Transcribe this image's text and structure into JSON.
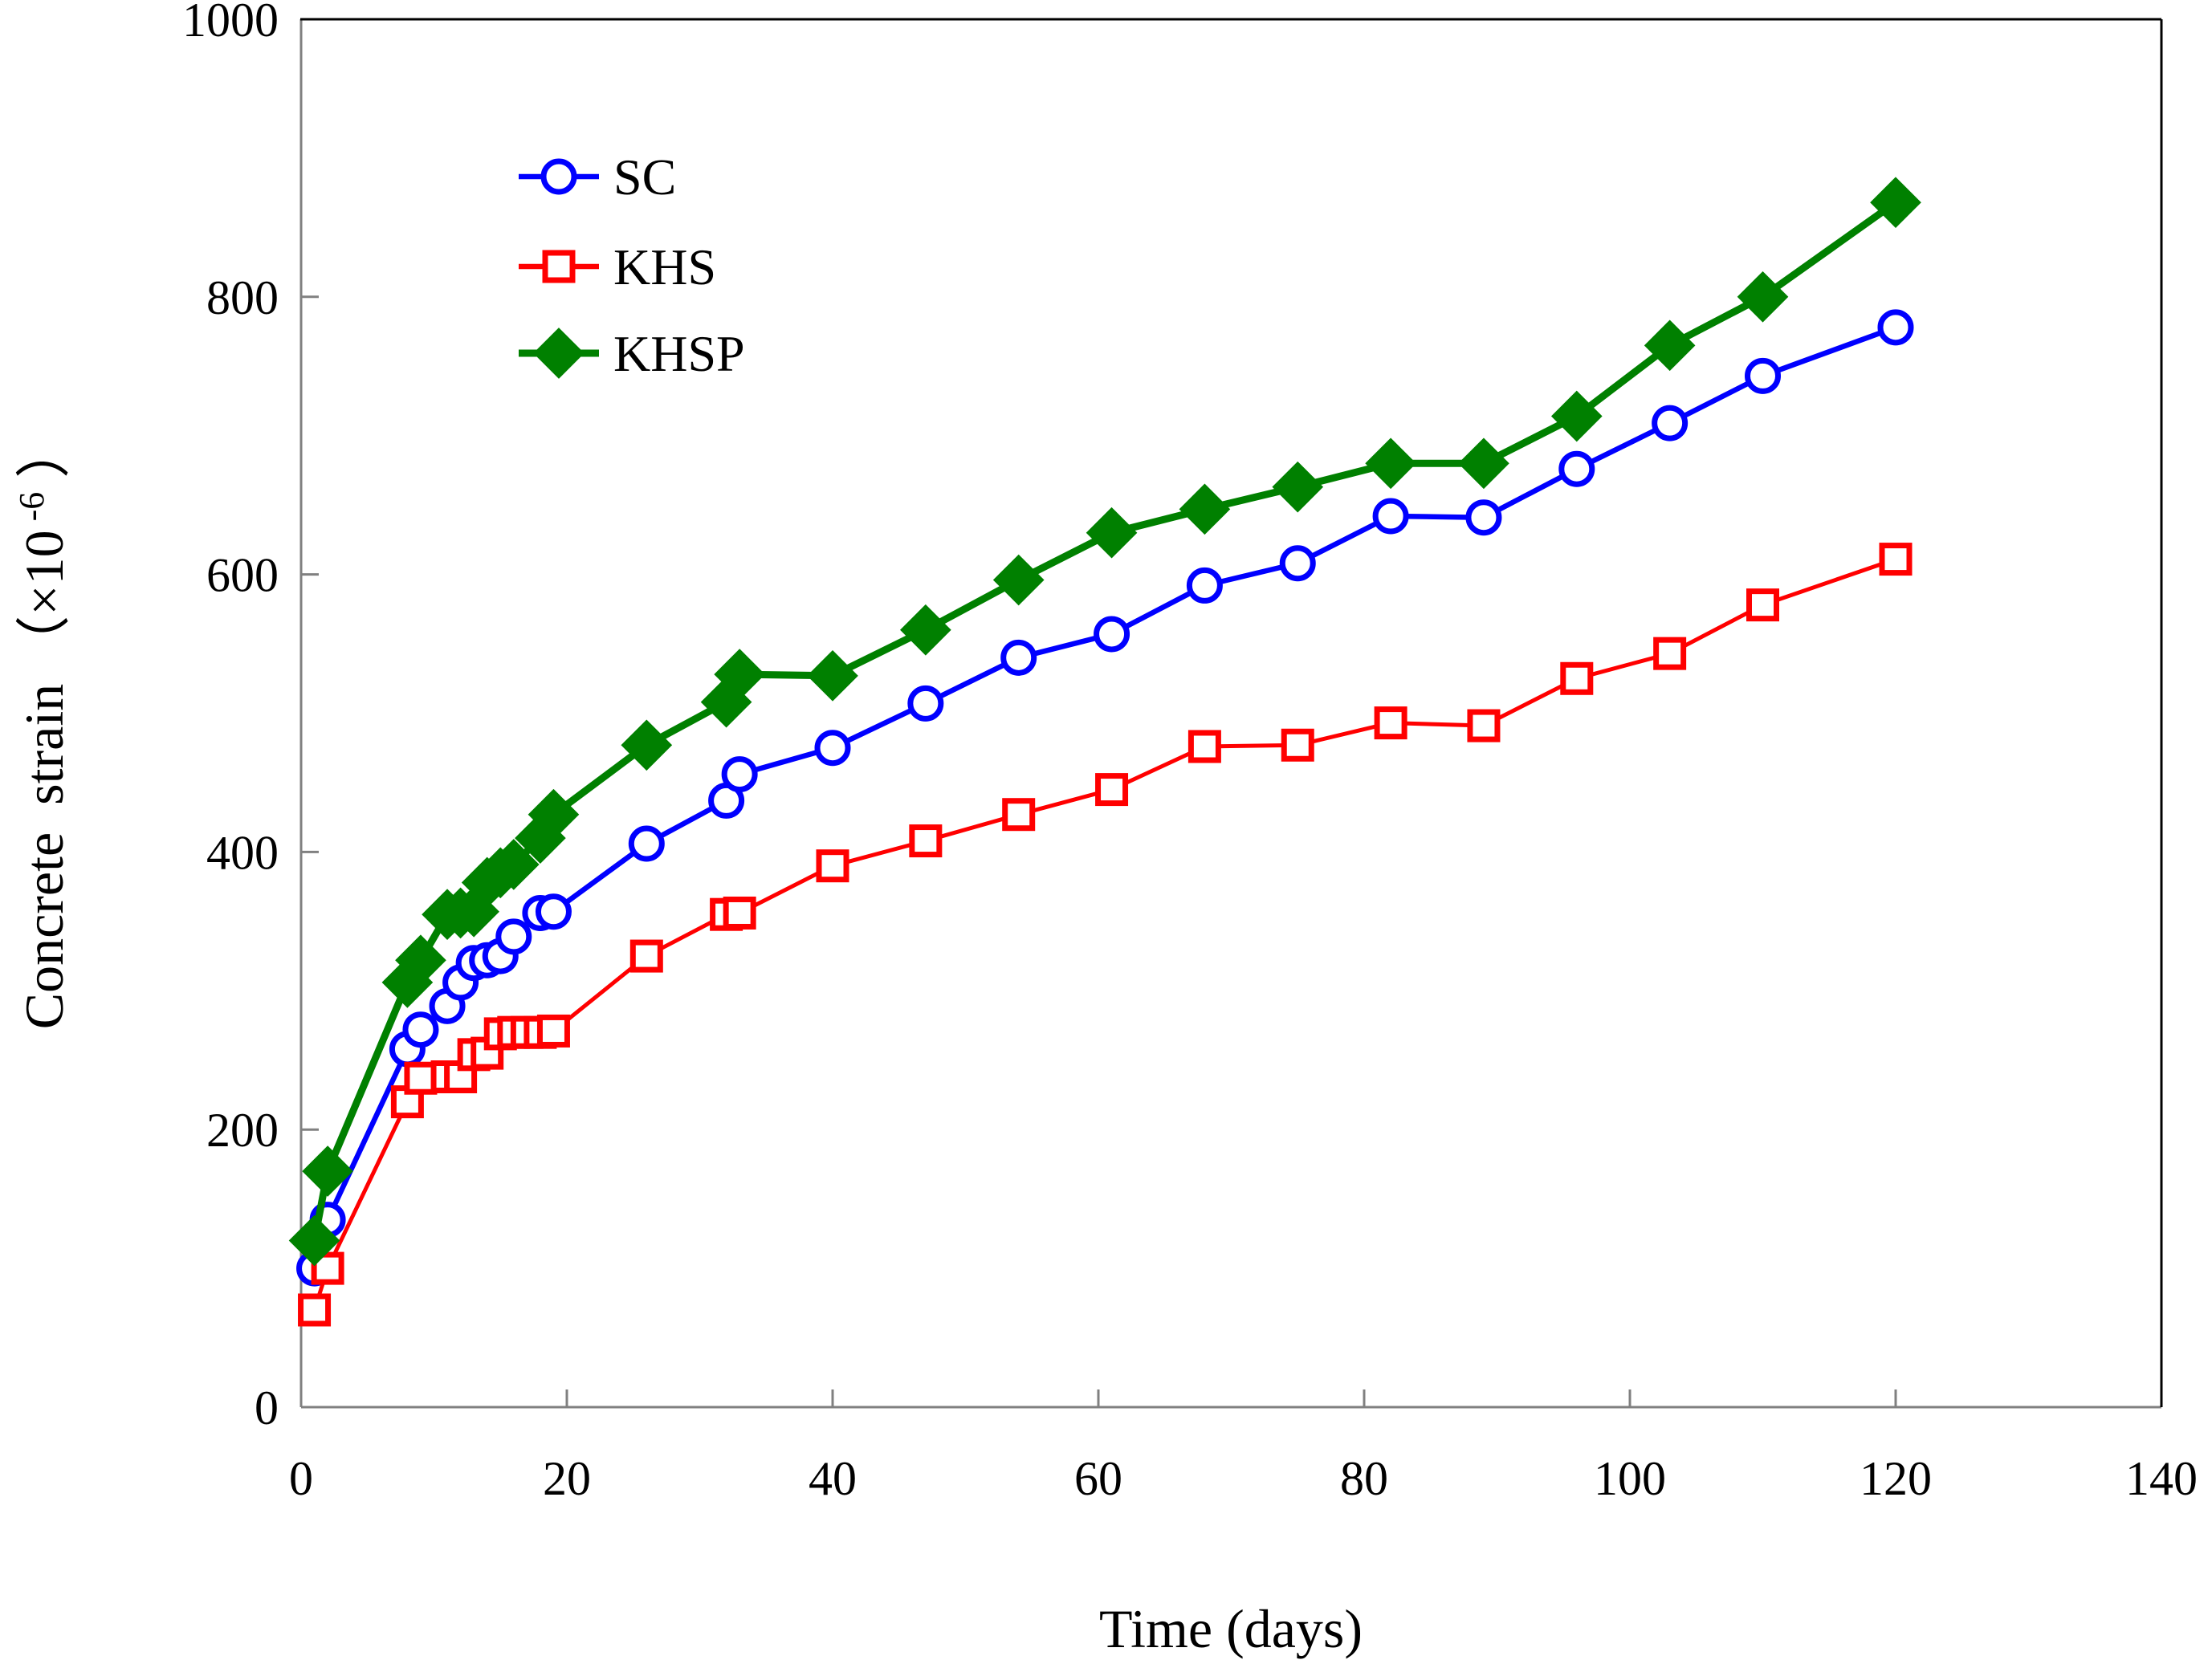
{
  "chart_data": {
    "type": "line",
    "title": "",
    "xlabel": "Time (days)",
    "ylabel_parts": {
      "prefix": "Concrete  strain （×10",
      "sup": " -6",
      "suffix": " ）"
    },
    "xlim": [
      0,
      140
    ],
    "ylim": [
      0,
      1000
    ],
    "xticks": [
      0,
      20,
      40,
      60,
      80,
      100,
      120,
      140
    ],
    "yticks": [
      0,
      200,
      400,
      600,
      800,
      1000
    ],
    "grid": false,
    "legend_position": "inside-top-left",
    "style": {
      "axis_color": "#808080",
      "border_color": "#000000",
      "background": "#ffffff"
    },
    "series": [
      {
        "name": "SC",
        "color": "#0000ff",
        "marker": "circle",
        "marker_fill": "#ffffff",
        "line_width": 6.5,
        "x": [
          1,
          2,
          8,
          9,
          11,
          12,
          13,
          14,
          15,
          16,
          18,
          19,
          26,
          32,
          33,
          40,
          47,
          54,
          61,
          68,
          75,
          82,
          89,
          96,
          103,
          110,
          120
        ],
        "y": [
          100,
          135,
          258,
          272,
          289,
          306,
          320,
          322,
          325,
          339,
          356,
          357,
          406,
          437,
          456,
          475,
          507,
          540,
          557,
          592,
          608,
          642,
          641,
          676,
          709,
          743,
          778
        ]
      },
      {
        "name": "KHS",
        "color": "#ff0000",
        "marker": "square",
        "marker_fill": "#ffffff",
        "line_width": 5,
        "x": [
          1,
          2,
          8,
          9,
          11,
          12,
          13,
          14,
          15,
          16,
          17,
          18,
          19,
          26,
          32,
          33,
          40,
          47,
          54,
          61,
          68,
          75,
          82,
          89,
          96,
          103,
          110,
          120
        ],
        "y": [
          70,
          100,
          220,
          237,
          238,
          238,
          254,
          255,
          269,
          270,
          270,
          270,
          271,
          325,
          355,
          356,
          390,
          408,
          427,
          445,
          476,
          477,
          493,
          491,
          525,
          543,
          578,
          611
        ]
      },
      {
        "name": "KHSP",
        "color": "#008000",
        "marker": "diamond",
        "marker_fill": "#008000",
        "line_width": 9,
        "x": [
          1,
          2,
          8,
          9,
          11,
          12,
          13,
          14,
          15,
          16,
          18,
          19,
          26,
          32,
          33,
          40,
          47,
          54,
          61,
          68,
          75,
          82,
          89,
          96,
          103,
          110,
          120
        ],
        "y": [
          120,
          170,
          306,
          322,
          355,
          356,
          357,
          378,
          385,
          391,
          410,
          427,
          477,
          508,
          528,
          527,
          560,
          596,
          630,
          647,
          663,
          680,
          680,
          714,
          765,
          800,
          868
        ]
      }
    ]
  }
}
